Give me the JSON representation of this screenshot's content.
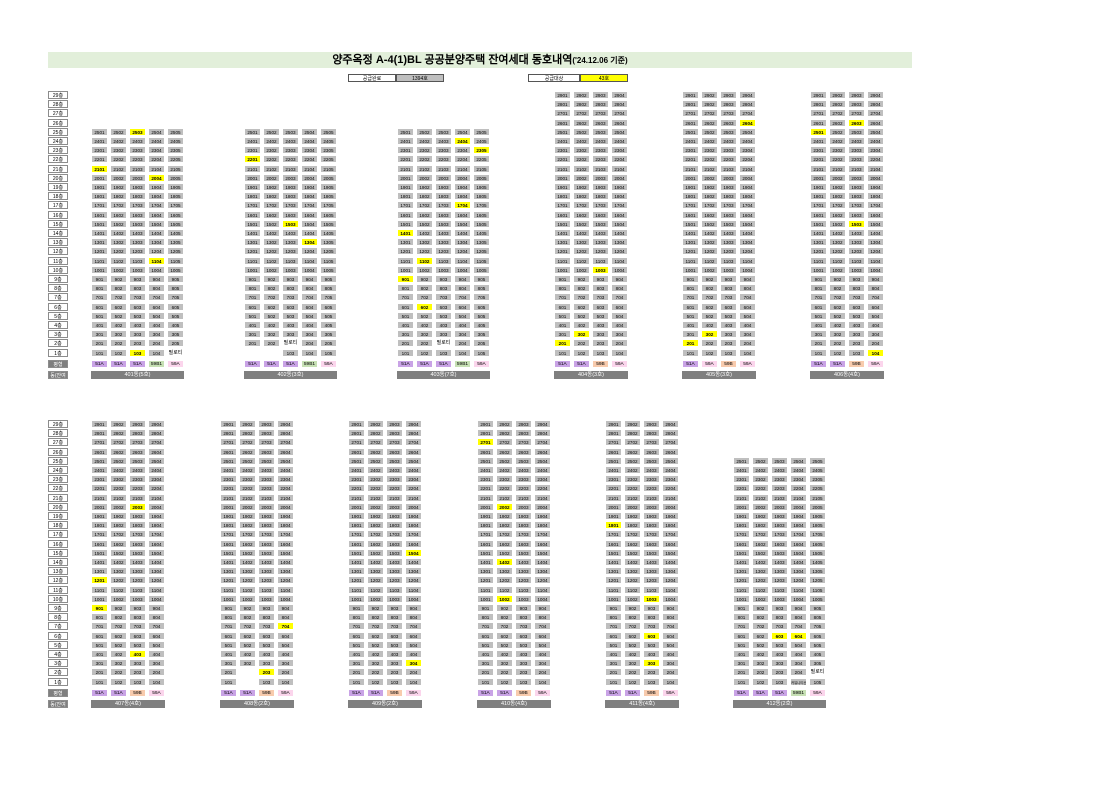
{
  "header": {
    "title": "양주옥정 A-4(1)BL 공공분양주택 잔여세대 동호내역",
    "sub": "('24.12.06 기준)"
  },
  "summary": {
    "done_label": "공급완료",
    "done_value": "1394호",
    "target_label": "공급대상",
    "target_value": "43호"
  },
  "row_labels": {
    "type": "평형",
    "building": "동(잔여호)"
  },
  "floors": [
    "29층",
    "28층",
    "27층",
    "26층",
    "25층",
    "24층",
    "23층",
    "22층",
    "21층",
    "20층",
    "19층",
    "18층",
    "17층",
    "16층",
    "15층",
    "14층",
    "13층",
    "12층",
    "11층",
    "10층",
    "9층",
    "8층",
    "7층",
    "6층",
    "5층",
    "4층",
    "3층",
    "2층",
    "1층"
  ],
  "colors": {
    "cell": "#bfbfbf",
    "vacant": "#ffff00",
    "51A": "#c9a3e6",
    "59B": "#f8cbad",
    "59B1": "#c6e0b4",
    "59A": "#fbd5ec"
  },
  "buildings": [
    {
      "name": "401동(5호)",
      "cols": 5,
      "top": 25,
      "type_labels": [
        "51A",
        "51A",
        "51A",
        "59B1",
        "59A"
      ],
      "vacant": [
        "2503",
        "2101",
        "2004",
        "1104",
        "103"
      ],
      "white": {
        "1": [
          {
            "c": 5,
            "t": "필로티"
          }
        ]
      }
    },
    {
      "name": "402동(3호)",
      "cols": 5,
      "top": 25,
      "type_labels": [
        "51A",
        "51A",
        "51A",
        "59B1",
        "59A"
      ],
      "vacant": [
        "2201",
        "1503",
        "1304"
      ],
      "white": {
        "1": [
          {
            "c": 1,
            "t": ""
          },
          {
            "c": 2,
            "t": ""
          }
        ],
        "2": [
          {
            "c": 3,
            "t": "필로티"
          }
        ]
      }
    },
    {
      "name": "403동(7호)",
      "cols": 5,
      "top": 25,
      "type_labels": [
        "51A",
        "51A",
        "51A",
        "59B1",
        "59A"
      ],
      "vacant": [
        "2404",
        "2305",
        "1704",
        "1401",
        "1102",
        "901",
        "602"
      ],
      "white": {
        "2": [
          {
            "c": 3,
            "t": "필로티"
          }
        ]
      }
    },
    {
      "name": "404동(3호)",
      "cols": 4,
      "top": 29,
      "type_labels": [
        "51A",
        "51A",
        "59B",
        "59A"
      ],
      "vacant": [
        "1003",
        "302",
        "201"
      ]
    },
    {
      "name": "405동(3호)",
      "cols": 4,
      "top": 29,
      "type_labels": [
        "51A",
        "59A",
        "59B",
        "59A"
      ],
      "vacant": [
        "2604",
        "302",
        "201"
      ]
    },
    {
      "name": "406동(4호)",
      "cols": 4,
      "top": 29,
      "type_labels": [
        "51A",
        "51A",
        "59B",
        "59A"
      ],
      "vacant": [
        "2603",
        "2501",
        "1503",
        "104"
      ]
    },
    {
      "name": "407동(4호)",
      "cols": 4,
      "top": 29,
      "type_labels": [
        "51A",
        "51A",
        "59B",
        "59A"
      ],
      "vacant": [
        "2003",
        "1201",
        "901",
        "403"
      ]
    },
    {
      "name": "408동(2호)",
      "cols": 4,
      "top": 29,
      "type_labels": [
        "51A",
        "51A",
        "59B",
        "59A"
      ],
      "vacant": [
        "704",
        "203"
      ],
      "white": {
        "2": [
          {
            "c": 2,
            "t": ""
          }
        ],
        "1": [
          {
            "c": 2,
            "t": ""
          }
        ]
      }
    },
    {
      "name": "409동(2호)",
      "cols": 4,
      "top": 29,
      "type_labels": [
        "51A",
        "51A",
        "59B",
        "59A"
      ],
      "vacant": [
        "1504",
        "304"
      ]
    },
    {
      "name": "410동(4호)",
      "cols": 4,
      "top": 29,
      "type_labels": [
        "51A",
        "51A",
        "59B",
        "59A"
      ],
      "vacant": [
        "2701",
        "2002",
        "1402",
        "1002"
      ]
    },
    {
      "name": "411동(4호)",
      "cols": 4,
      "top": 29,
      "type_labels": [
        "51A",
        "51A",
        "59B",
        "59A"
      ],
      "vacant": [
        "1801",
        "1003",
        "603",
        "303"
      ]
    },
    {
      "name": "412동(2호)",
      "cols": 5,
      "top": 25,
      "type_labels": [
        "51A",
        "51A",
        "51A",
        "59B1",
        "59A"
      ],
      "vacant": [
        "603",
        "604"
      ],
      "tiny": {
        "1": [
          {
            "c": 4,
            "t": "커뮤니티센터"
          }
        ]
      },
      "white": {
        "2": [
          {
            "c": 5,
            "t": "필로티"
          }
        ]
      }
    }
  ]
}
